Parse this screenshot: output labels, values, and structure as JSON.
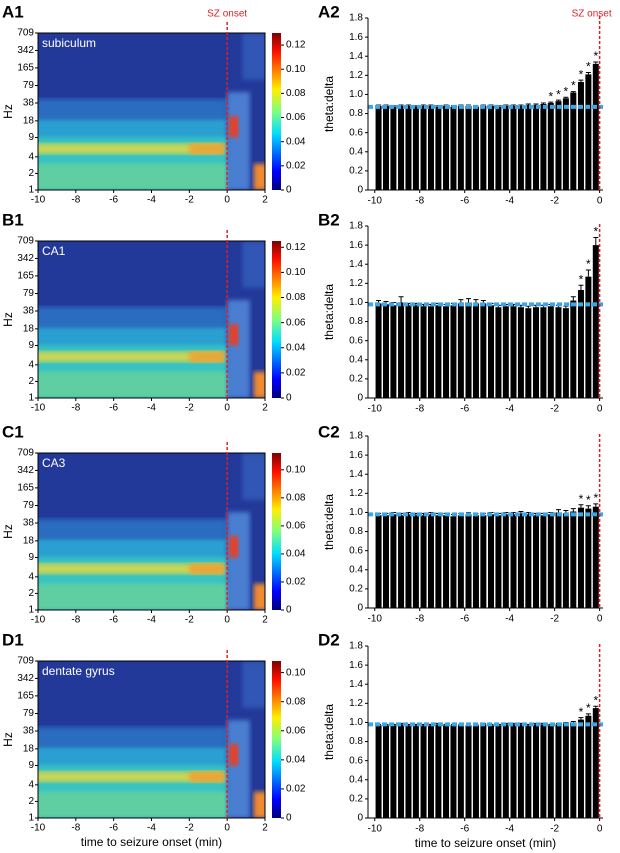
{
  "chart_data": [
    {
      "type": "heatmap",
      "panel_label": "A1",
      "title": "subiculum",
      "annotation": "SZ onset",
      "ylabel": "Hz",
      "xlim": [
        -10,
        2
      ],
      "xticks": [
        -10,
        -8,
        -6,
        -4,
        -2,
        0,
        2
      ],
      "ylim": [
        1,
        709
      ],
      "yticks": [
        1,
        2,
        4,
        9,
        18,
        38,
        79,
        165,
        342,
        709
      ],
      "log_y": true,
      "onset_x": 0,
      "colorbar_lim": [
        0,
        0.13
      ],
      "colorbar_ticks": [
        0,
        0.02,
        0.04,
        0.06,
        0.08,
        {
          "value": 0.1,
          "label": "0.10"
        },
        0.12
      ]
    },
    {
      "type": "bar",
      "panel_label": "A2",
      "annotation": "SZ onset",
      "ylabel": "theta:delta",
      "color": "#000000",
      "baseline_color": "#3ea6e6",
      "x": [
        -9.83,
        -9.5,
        -9.17,
        -8.83,
        -8.5,
        -8.17,
        -7.83,
        -7.5,
        -7.17,
        -6.83,
        -6.5,
        -6.17,
        -5.83,
        -5.5,
        -5.17,
        -4.83,
        -4.5,
        -4.17,
        -3.83,
        -3.5,
        -3.17,
        -2.83,
        -2.5,
        -2.17,
        -1.83,
        -1.5,
        -1.17,
        -0.83,
        -0.5,
        -0.17
      ],
      "values": [
        0.88,
        0.88,
        0.87,
        0.88,
        0.88,
        0.87,
        0.88,
        0.88,
        0.87,
        0.88,
        0.87,
        0.88,
        0.88,
        0.87,
        0.88,
        0.88,
        0.87,
        0.88,
        0.88,
        0.88,
        0.89,
        0.89,
        0.9,
        0.91,
        0.93,
        0.96,
        1.02,
        1.13,
        1.21,
        1.32
      ],
      "errors": [
        0.01,
        0.01,
        0.01,
        0.01,
        0.01,
        0.01,
        0.01,
        0.01,
        0.01,
        0.01,
        0.01,
        0.01,
        0.01,
        0.01,
        0.01,
        0.01,
        0.01,
        0.01,
        0.01,
        0.01,
        0.01,
        0.01,
        0.01,
        0.01,
        0.01,
        0.01,
        0.01,
        0.02,
        0.02,
        0.02
      ],
      "marks": [
        null,
        null,
        null,
        null,
        null,
        null,
        null,
        null,
        null,
        null,
        null,
        null,
        null,
        null,
        null,
        null,
        null,
        null,
        null,
        null,
        null,
        null,
        null,
        "*",
        "*",
        "*",
        "*",
        "*",
        "*",
        "*"
      ],
      "baseline": 0.87,
      "onset_x": 0,
      "xlim": [
        -10.3,
        0.15
      ],
      "xticks": [
        -10,
        -8,
        -6,
        -4,
        -2,
        0
      ],
      "ylim": [
        0,
        1.8
      ],
      "yticks": [
        0,
        0.2,
        0.4,
        0.6,
        0.8,
        {
          "value": 1,
          "label": "1.0"
        },
        1.2,
        1.4,
        1.6,
        1.8
      ]
    },
    {
      "type": "heatmap",
      "panel_label": "B1",
      "title": "CA1",
      "ylabel": "Hz",
      "xlim": [
        -10,
        2
      ],
      "xticks": [
        -10,
        -8,
        -6,
        -4,
        -2,
        0,
        2
      ],
      "ylim": [
        1,
        709
      ],
      "yticks": [
        1,
        2,
        4,
        9,
        18,
        38,
        79,
        165,
        342,
        709
      ],
      "log_y": true,
      "onset_x": 0,
      "colorbar_lim": [
        0,
        0.125
      ],
      "colorbar_ticks": [
        0,
        0.02,
        0.04,
        0.06,
        0.08,
        {
          "value": 0.1,
          "label": "0.10"
        },
        0.12
      ]
    },
    {
      "type": "bar",
      "panel_label": "B2",
      "ylabel": "theta:delta",
      "color": "#000000",
      "baseline_color": "#3ea6e6",
      "x": [
        -9.83,
        -9.5,
        -9.17,
        -8.83,
        -8.5,
        -8.17,
        -7.83,
        -7.5,
        -7.17,
        -6.83,
        -6.5,
        -6.17,
        -5.83,
        -5.5,
        -5.17,
        -4.83,
        -4.5,
        -4.17,
        -3.83,
        -3.5,
        -3.17,
        -2.83,
        -2.5,
        -2.17,
        -1.83,
        -1.5,
        -1.17,
        -0.83,
        -0.5,
        -0.17
      ],
      "values": [
        0.99,
        0.98,
        0.97,
        1.0,
        0.97,
        0.97,
        0.96,
        0.96,
        0.97,
        0.96,
        0.97,
        0.99,
        1.0,
        0.99,
        0.99,
        0.97,
        0.95,
        0.96,
        0.96,
        0.95,
        0.94,
        0.95,
        0.95,
        0.96,
        0.95,
        0.94,
        1.02,
        1.13,
        1.27,
        1.6
      ],
      "errors": [
        0.03,
        0.03,
        0.03,
        0.06,
        0.02,
        0.02,
        0.02,
        0.02,
        0.02,
        0.02,
        0.02,
        0.04,
        0.04,
        0.04,
        0.03,
        0.02,
        0.02,
        0.02,
        0.02,
        0.02,
        0.02,
        0.02,
        0.02,
        0.02,
        0.02,
        0.02,
        0.04,
        0.05,
        0.07,
        0.08
      ],
      "marks": [
        null,
        null,
        null,
        null,
        null,
        null,
        null,
        null,
        null,
        null,
        null,
        null,
        null,
        null,
        null,
        null,
        null,
        null,
        null,
        null,
        null,
        null,
        null,
        null,
        null,
        null,
        null,
        "*",
        "*",
        "*"
      ],
      "baseline": 0.98,
      "onset_x": 0,
      "xlim": [
        -10.3,
        0.15
      ],
      "xticks": [
        -10,
        -8,
        -6,
        -4,
        -2,
        0
      ],
      "ylim": [
        0,
        1.8
      ],
      "yticks": [
        0,
        0.2,
        0.4,
        0.6,
        0.8,
        {
          "value": 1,
          "label": "1.0"
        },
        1.2,
        1.4,
        1.6,
        1.8
      ]
    },
    {
      "type": "heatmap",
      "panel_label": "C1",
      "title": "CA3",
      "ylabel": "Hz",
      "xlim": [
        -10,
        2
      ],
      "xticks": [
        -10,
        -8,
        -6,
        -4,
        -2,
        0,
        2
      ],
      "ylim": [
        1,
        709
      ],
      "yticks": [
        1,
        2,
        4,
        9,
        18,
        38,
        79,
        165,
        342,
        709
      ],
      "log_y": true,
      "onset_x": 0,
      "colorbar_lim": [
        0,
        0.112
      ],
      "colorbar_ticks": [
        0,
        0.02,
        0.04,
        0.06,
        0.08,
        {
          "value": 0.1,
          "label": "0.10"
        }
      ]
    },
    {
      "type": "bar",
      "panel_label": "C2",
      "ylabel": "theta:delta",
      "color": "#000000",
      "baseline_color": "#3ea6e6",
      "x": [
        -9.83,
        -9.5,
        -9.17,
        -8.83,
        -8.5,
        -8.17,
        -7.83,
        -7.5,
        -7.17,
        -6.83,
        -6.5,
        -6.17,
        -5.83,
        -5.5,
        -5.17,
        -4.83,
        -4.5,
        -4.17,
        -3.83,
        -3.5,
        -3.17,
        -2.83,
        -2.5,
        -2.17,
        -1.83,
        -1.5,
        -1.17,
        -0.83,
        -0.5,
        -0.17
      ],
      "values": [
        0.97,
        0.97,
        0.98,
        0.97,
        0.98,
        0.97,
        0.97,
        0.98,
        0.97,
        0.97,
        0.96,
        0.97,
        0.98,
        0.97,
        0.97,
        0.98,
        0.97,
        0.98,
        0.98,
        0.99,
        0.98,
        0.97,
        0.97,
        0.98,
        1.0,
        0.99,
        1.01,
        1.05,
        1.04,
        1.06
      ],
      "errors": [
        0.02,
        0.02,
        0.02,
        0.02,
        0.02,
        0.02,
        0.02,
        0.02,
        0.02,
        0.02,
        0.02,
        0.02,
        0.02,
        0.02,
        0.02,
        0.02,
        0.02,
        0.02,
        0.02,
        0.02,
        0.02,
        0.02,
        0.02,
        0.02,
        0.03,
        0.03,
        0.03,
        0.03,
        0.03,
        0.03
      ],
      "marks": [
        null,
        null,
        null,
        null,
        null,
        null,
        null,
        null,
        null,
        null,
        null,
        null,
        null,
        null,
        null,
        null,
        null,
        null,
        null,
        null,
        null,
        null,
        null,
        null,
        null,
        null,
        null,
        "*",
        "*",
        "*"
      ],
      "baseline": 0.98,
      "onset_x": 0,
      "xlim": [
        -10.3,
        0.15
      ],
      "xticks": [
        -10,
        -8,
        -6,
        -4,
        -2,
        0
      ],
      "ylim": [
        0,
        1.8
      ],
      "yticks": [
        0,
        0.2,
        0.4,
        0.6,
        0.8,
        {
          "value": 1,
          "label": "1.0"
        },
        1.2,
        1.4,
        1.6,
        1.8
      ]
    },
    {
      "type": "heatmap",
      "panel_label": "D1",
      "title": "dentate gyrus",
      "ylabel": "Hz",
      "xlabel": "time to seizure onset (min)",
      "xlim": [
        -10,
        2
      ],
      "xticks": [
        -10,
        -8,
        -6,
        -4,
        -2,
        0,
        2
      ],
      "ylim": [
        1,
        709
      ],
      "yticks": [
        1,
        2,
        4,
        9,
        18,
        38,
        79,
        165,
        342,
        709
      ],
      "log_y": true,
      "onset_x": 0,
      "colorbar_lim": [
        0,
        0.108
      ],
      "colorbar_ticks": [
        0,
        0.02,
        0.04,
        0.06,
        0.08,
        {
          "value": 0.1,
          "label": "0.10"
        }
      ]
    },
    {
      "type": "bar",
      "panel_label": "D2",
      "ylabel": "theta:delta",
      "xlabel": "time to seizure onset (min)",
      "color": "#000000",
      "baseline_color": "#3ea6e6",
      "x": [
        -9.83,
        -9.5,
        -9.17,
        -8.83,
        -8.5,
        -8.17,
        -7.83,
        -7.5,
        -7.17,
        -6.83,
        -6.5,
        -6.17,
        -5.83,
        -5.5,
        -5.17,
        -4.83,
        -4.5,
        -4.17,
        -3.83,
        -3.5,
        -3.17,
        -2.83,
        -2.5,
        -2.17,
        -1.83,
        -1.5,
        -1.17,
        -0.83,
        -0.5,
        -0.17
      ],
      "values": [
        0.97,
        0.97,
        0.97,
        0.98,
        0.97,
        0.97,
        0.97,
        0.97,
        0.98,
        0.97,
        0.97,
        0.97,
        0.97,
        0.97,
        0.98,
        0.97,
        0.97,
        0.98,
        0.98,
        0.98,
        0.97,
        0.98,
        0.98,
        0.97,
        0.98,
        0.99,
        1.0,
        1.03,
        1.07,
        1.15
      ],
      "errors": [
        0.01,
        0.01,
        0.01,
        0.01,
        0.01,
        0.01,
        0.01,
        0.01,
        0.01,
        0.01,
        0.01,
        0.01,
        0.01,
        0.01,
        0.01,
        0.01,
        0.01,
        0.01,
        0.01,
        0.01,
        0.01,
        0.01,
        0.01,
        0.01,
        0.01,
        0.01,
        0.01,
        0.02,
        0.02,
        0.02
      ],
      "marks": [
        null,
        null,
        null,
        null,
        null,
        null,
        null,
        null,
        null,
        null,
        null,
        null,
        null,
        null,
        null,
        null,
        null,
        null,
        null,
        null,
        null,
        null,
        null,
        null,
        null,
        null,
        null,
        "*",
        "*",
        "*"
      ],
      "baseline": 0.98,
      "onset_x": 0,
      "xlim": [
        -10.3,
        0.15
      ],
      "xticks": [
        -10,
        -8,
        -6,
        -4,
        -2,
        0
      ],
      "ylim": [
        0,
        1.8
      ],
      "yticks": [
        0,
        0.2,
        0.4,
        0.6,
        0.8,
        {
          "value": 1,
          "label": "1.0"
        },
        1.2,
        1.4,
        1.6,
        1.8
      ]
    }
  ]
}
